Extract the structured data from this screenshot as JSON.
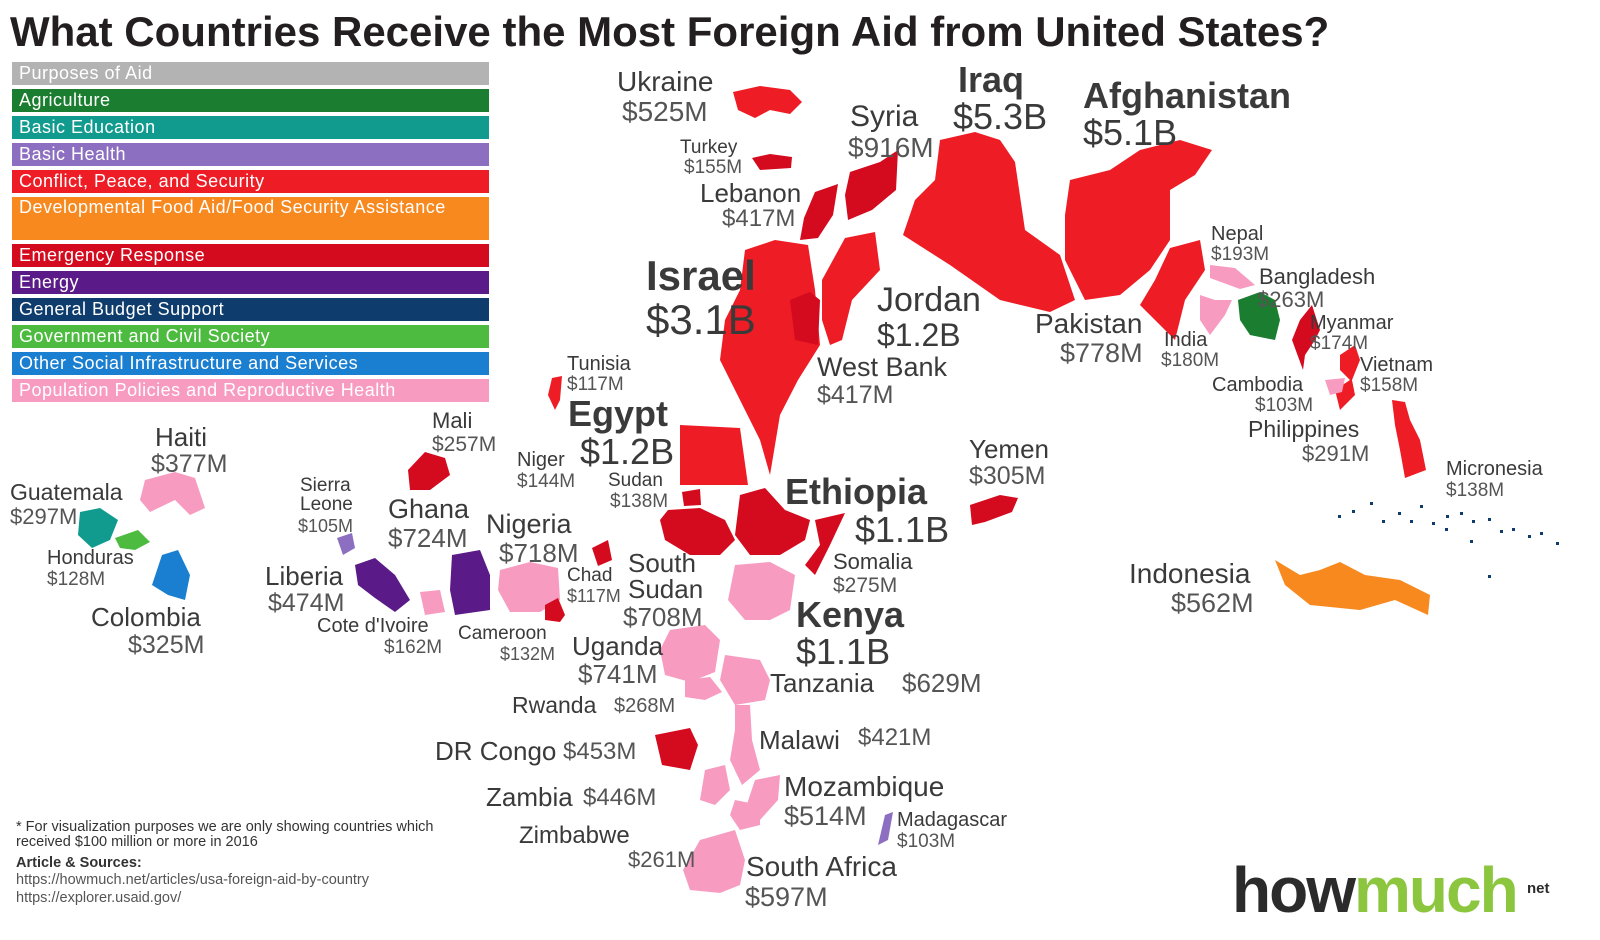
{
  "title": "What Countries Receive the Most Foreign Aid from United States?",
  "legend": {
    "header": {
      "label": "Purposes of Aid",
      "color": "#b3b3b3"
    },
    "items": [
      {
        "key": "agriculture",
        "label": "Agriculture",
        "color": "#1a7d2f"
      },
      {
        "key": "education",
        "label": "Basic Education",
        "color": "#119b8e"
      },
      {
        "key": "health",
        "label": "Basic Health",
        "color": "#8c6fc0"
      },
      {
        "key": "conflict",
        "label": "Conflict, Peace, and Security",
        "color": "#ee1c25"
      },
      {
        "key": "food",
        "label": "Developmental Food Aid/Food Security Assistance",
        "color": "#f7891f"
      },
      {
        "key": "emergency",
        "label": "Emergency Response",
        "color": "#d40a1e"
      },
      {
        "key": "energy",
        "label": "Energy",
        "color": "#5a1a87"
      },
      {
        "key": "budget",
        "label": "General Budget Support",
        "color": "#0e3d6d"
      },
      {
        "key": "government",
        "label": "Government and Civil Society",
        "color": "#4dbb3f"
      },
      {
        "key": "social",
        "label": "Other Social Infrastructure and Services",
        "color": "#1a7fd0"
      },
      {
        "key": "population",
        "label": "Population Policies and Reproductive Health",
        "color": "#f79bc1"
      }
    ]
  },
  "countries": [
    {
      "name": "Ukraine",
      "amount": "$525M",
      "purpose": "conflict"
    },
    {
      "name": "Turkey",
      "amount": "$155M",
      "purpose": "emergency"
    },
    {
      "name": "Syria",
      "amount": "$916M",
      "purpose": "emergency"
    },
    {
      "name": "Lebanon",
      "amount": "$417M",
      "purpose": "emergency"
    },
    {
      "name": "Iraq",
      "amount": "$5.3B",
      "purpose": "conflict"
    },
    {
      "name": "Afghanistan",
      "amount": "$5.1B",
      "purpose": "conflict"
    },
    {
      "name": "Israel",
      "amount": "$3.1B",
      "purpose": "conflict"
    },
    {
      "name": "Jordan",
      "amount": "$1.2B",
      "purpose": "conflict"
    },
    {
      "name": "West Bank",
      "amount": "$417M",
      "purpose": "emergency"
    },
    {
      "name": "Pakistan",
      "amount": "$778M",
      "purpose": "conflict"
    },
    {
      "name": "Nepal",
      "amount": "$193M",
      "purpose": "population"
    },
    {
      "name": "Bangladesh",
      "amount": "$263M",
      "purpose": "agriculture"
    },
    {
      "name": "India",
      "amount": "$180M",
      "purpose": "population"
    },
    {
      "name": "Myanmar",
      "amount": "$174M",
      "purpose": "emergency"
    },
    {
      "name": "Vietnam",
      "amount": "$158M",
      "purpose": "conflict"
    },
    {
      "name": "Cambodia",
      "amount": "$103M",
      "purpose": "population"
    },
    {
      "name": "Philippines",
      "amount": "$291M",
      "purpose": "conflict"
    },
    {
      "name": "Micronesia",
      "amount": "$138M",
      "purpose": "budget"
    },
    {
      "name": "Indonesia",
      "amount": "$562M",
      "purpose": "food"
    },
    {
      "name": "Yemen",
      "amount": "$305M",
      "purpose": "emergency"
    },
    {
      "name": "Ethiopia",
      "amount": "$1.1B",
      "purpose": "emergency"
    },
    {
      "name": "Somalia",
      "amount": "$275M",
      "purpose": "emergency"
    },
    {
      "name": "Egypt",
      "amount": "$1.2B",
      "purpose": "conflict"
    },
    {
      "name": "Tunisia",
      "amount": "$117M",
      "purpose": "conflict"
    },
    {
      "name": "Niger",
      "amount": "$144M",
      "purpose": "emergency"
    },
    {
      "name": "Sudan",
      "amount": "$138M",
      "purpose": "emergency"
    },
    {
      "name": "South Sudan",
      "amount": "$708M",
      "purpose": "emergency"
    },
    {
      "name": "Kenya",
      "amount": "$1.1B",
      "purpose": "population"
    },
    {
      "name": "Uganda",
      "amount": "$741M",
      "purpose": "population"
    },
    {
      "name": "Tanzania",
      "amount": "$629M",
      "purpose": "population"
    },
    {
      "name": "Rwanda",
      "amount": "$268M",
      "purpose": "population"
    },
    {
      "name": "DR Congo",
      "amount": "$453M",
      "purpose": "emergency"
    },
    {
      "name": "Malawi",
      "amount": "$421M",
      "purpose": "population"
    },
    {
      "name": "Zambia",
      "amount": "$446M",
      "purpose": "population"
    },
    {
      "name": "Mozambique",
      "amount": "$514M",
      "purpose": "population"
    },
    {
      "name": "Madagascar",
      "amount": "$103M",
      "purpose": "health"
    },
    {
      "name": "Zimbabwe",
      "amount": "$261M",
      "purpose": "population"
    },
    {
      "name": "South Africa",
      "amount": "$597M",
      "purpose": "population"
    },
    {
      "name": "Mali",
      "amount": "$257M",
      "purpose": "emergency"
    },
    {
      "name": "Ghana",
      "amount": "$724M",
      "purpose": "energy"
    },
    {
      "name": "Nigeria",
      "amount": "$718M",
      "purpose": "population"
    },
    {
      "name": "Chad",
      "amount": "$117M",
      "purpose": "emergency"
    },
    {
      "name": "Cameroon",
      "amount": "$132M",
      "purpose": "emergency"
    },
    {
      "name": "Sierra Leone",
      "amount": "$105M",
      "purpose": "health"
    },
    {
      "name": "Liberia",
      "amount": "$474M",
      "purpose": "energy"
    },
    {
      "name": "Cote d'Ivoire",
      "amount": "$162M",
      "purpose": "population"
    },
    {
      "name": "Haiti",
      "amount": "$377M",
      "purpose": "population"
    },
    {
      "name": "Guatemala",
      "amount": "$297M",
      "purpose": "education"
    },
    {
      "name": "Honduras",
      "amount": "$128M",
      "purpose": "government"
    },
    {
      "name": "Colombia",
      "amount": "$325M",
      "purpose": "social"
    }
  ],
  "footnote": "* For visualization purposes we are only showing countries which received $100 million or more in 2016",
  "sources": {
    "heading": "Article & Sources:",
    "links": [
      "https://howmuch.net/articles/usa-foreign-aid-by-country",
      "https://explorer.usaid.gov/"
    ]
  },
  "logo": {
    "part1": "how",
    "part2": "much",
    "suffix": "net"
  }
}
